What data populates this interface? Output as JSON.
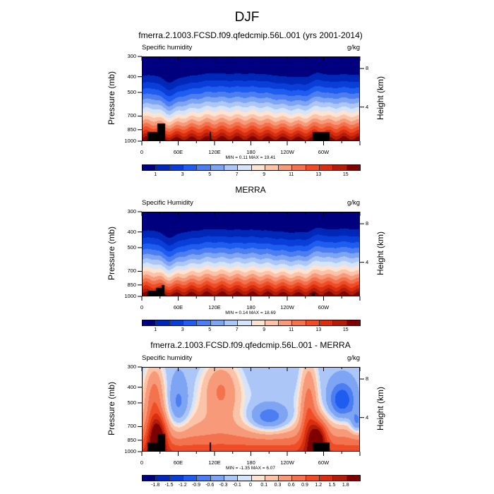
{
  "figure_title": "DJF",
  "chart_data": [
    {
      "type": "heatmap",
      "id": "top",
      "title": "fmerra.2.1003.FCSD.f09.qfedcmip.56L.001 (yrs 2001-2014)",
      "left_string": "Specific humidity",
      "right_string": "g/kg",
      "ylabel": "Pressure (mb)",
      "y2label": "Height (km)",
      "yticks": [
        "300",
        "400",
        "500",
        "700",
        "850",
        "1000"
      ],
      "y2ticks": [
        "8",
        "4"
      ],
      "xticks": [
        "0",
        "60E",
        "120E",
        "180",
        "120W",
        "60W"
      ],
      "xlim_deg": [
        0,
        360
      ],
      "ylim_mb": [
        1000,
        300
      ],
      "min_max": "MIN =   0.11  MAX =  19.41",
      "min": 0.11,
      "max": 19.41,
      "colorbar_labels": [
        "1",
        "3",
        "5",
        "7",
        "9",
        "11",
        "13",
        "15"
      ],
      "levels": [
        0,
        1,
        2,
        3,
        4,
        5,
        6,
        7,
        8,
        9,
        10,
        11,
        12,
        13,
        14,
        15
      ],
      "field": "model"
    },
    {
      "type": "heatmap",
      "id": "mid",
      "title": "MERRA",
      "left_string": "Specific Humidity",
      "right_string": "g/kg",
      "ylabel": "Pressure (mb)",
      "y2label": "Height (km)",
      "yticks": [
        "300",
        "400",
        "500",
        "700",
        "850",
        "1000"
      ],
      "y2ticks": [
        "8",
        "4"
      ],
      "xticks": [
        "0",
        "60E",
        "120E",
        "180",
        "120W",
        "60W"
      ],
      "xlim_deg": [
        0,
        360
      ],
      "ylim_mb": [
        1000,
        300
      ],
      "min_max": "MIN =   0.14  MAX =  18.69",
      "min": 0.14,
      "max": 18.69,
      "colorbar_labels": [
        "1",
        "3",
        "5",
        "7",
        "9",
        "11",
        "13",
        "15"
      ],
      "levels": [
        0,
        1,
        2,
        3,
        4,
        5,
        6,
        7,
        8,
        9,
        10,
        11,
        12,
        13,
        14,
        15
      ],
      "field": "obs"
    },
    {
      "type": "heatmap",
      "id": "diff",
      "title": "fmerra.2.1003.FCSD.f09.qfedcmip.56L.001 - MERRA",
      "left_string": "Specific humidity",
      "right_string": "g/kg",
      "ylabel": "Pressure (mb)",
      "y2label": "Height (km)",
      "yticks": [
        "300",
        "400",
        "500",
        "700",
        "850",
        "1000"
      ],
      "y2ticks": [
        "8",
        "4"
      ],
      "xticks": [
        "0",
        "60E",
        "120E",
        "180",
        "120W",
        "60W"
      ],
      "xlim_deg": [
        0,
        360
      ],
      "ylim_mb": [
        1000,
        300
      ],
      "min_max": "MIN =  -1.35  MAX =   6.07",
      "min": -1.35,
      "max": 6.07,
      "colorbar_labels": [
        "-1.8",
        "-1.5",
        "-1.2",
        "-0.9",
        "-0.6",
        "-0.3",
        "-0.1",
        "0",
        "0.1",
        "0.3",
        "0.6",
        "0.9",
        "1.2",
        "1.5",
        "1.8"
      ],
      "levels": [
        -1.8,
        -1.5,
        -1.2,
        -0.9,
        -0.6,
        -0.3,
        -0.1,
        0,
        0.1,
        0.3,
        0.6,
        0.9,
        1.2,
        1.5,
        1.8
      ],
      "field": "diff"
    }
  ],
  "colormap": [
    "#00007f",
    "#0028b8",
    "#0a3ed8",
    "#1f5cf0",
    "#4c7ef2",
    "#7ea4f4",
    "#adc6f8",
    "#d5e4fb",
    "#fde3d2",
    "#fbc3a8",
    "#f79a79",
    "#f2734e",
    "#ef4d26",
    "#d92f10",
    "#b01d08",
    "#7f0000"
  ]
}
